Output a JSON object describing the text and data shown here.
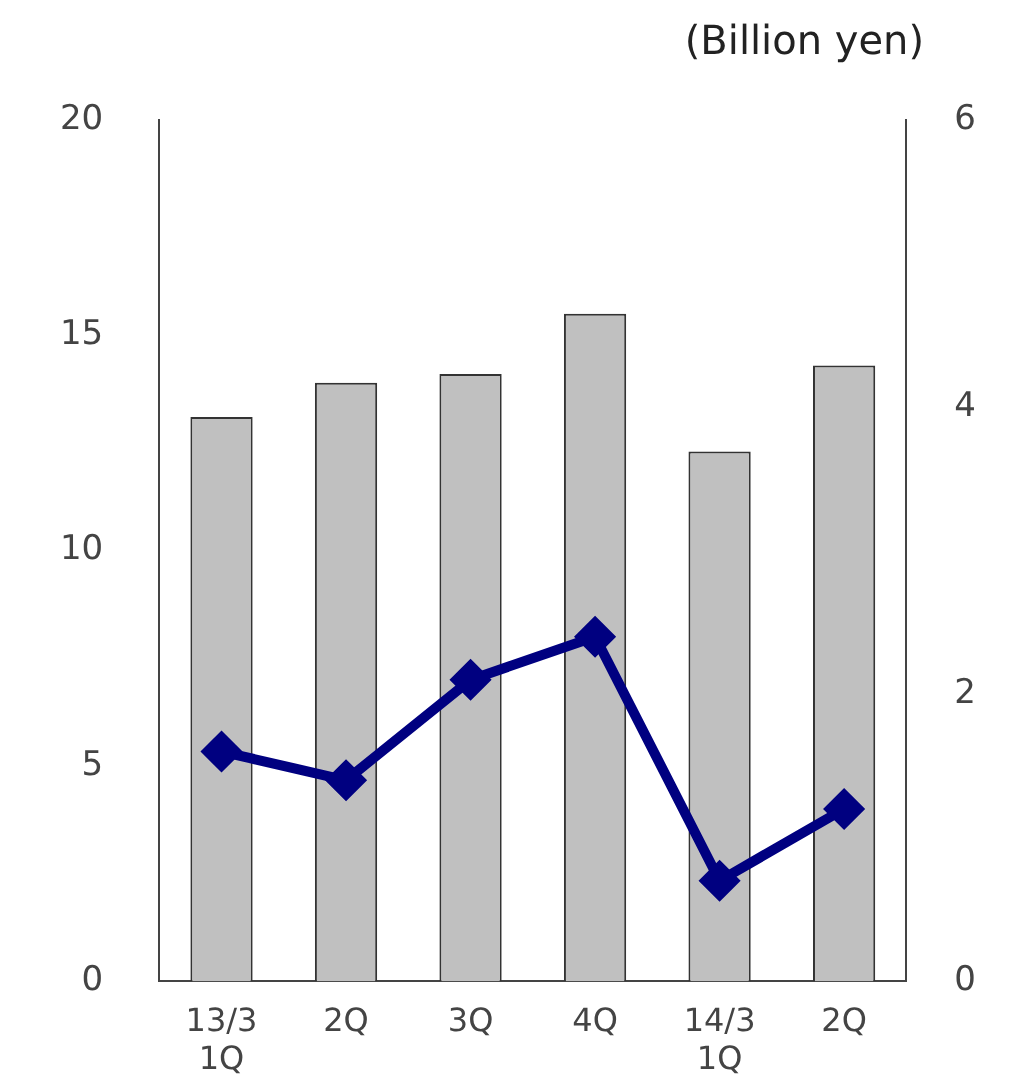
{
  "chart_data": {
    "type": "bar",
    "categories": [
      "13/3\n1Q",
      "2Q",
      "3Q",
      "4Q",
      "14/3\n1Q",
      "2Q"
    ],
    "series": [
      {
        "color": "#c0c0c0",
        "values": [
          13.1,
          13.9,
          14.1,
          15.5,
          12.3,
          14.3
        ]
      },
      {
        "type": "line",
        "axis": "y2",
        "color": "#000080",
        "values": [
          1.6,
          1.4,
          2.1,
          2.4,
          0.7,
          1.2
        ]
      }
    ],
    "ylim": [
      0,
      20
    ],
    "yticks": [
      0,
      5,
      10,
      15,
      20
    ],
    "y2lim": [
      0,
      6
    ],
    "y2ticks": [
      0,
      2,
      4,
      6
    ],
    "annotations": [
      "(Billion yen)"
    ],
    "grid": false,
    "legend": false,
    "marker": "diamond",
    "line_style": "solid"
  }
}
